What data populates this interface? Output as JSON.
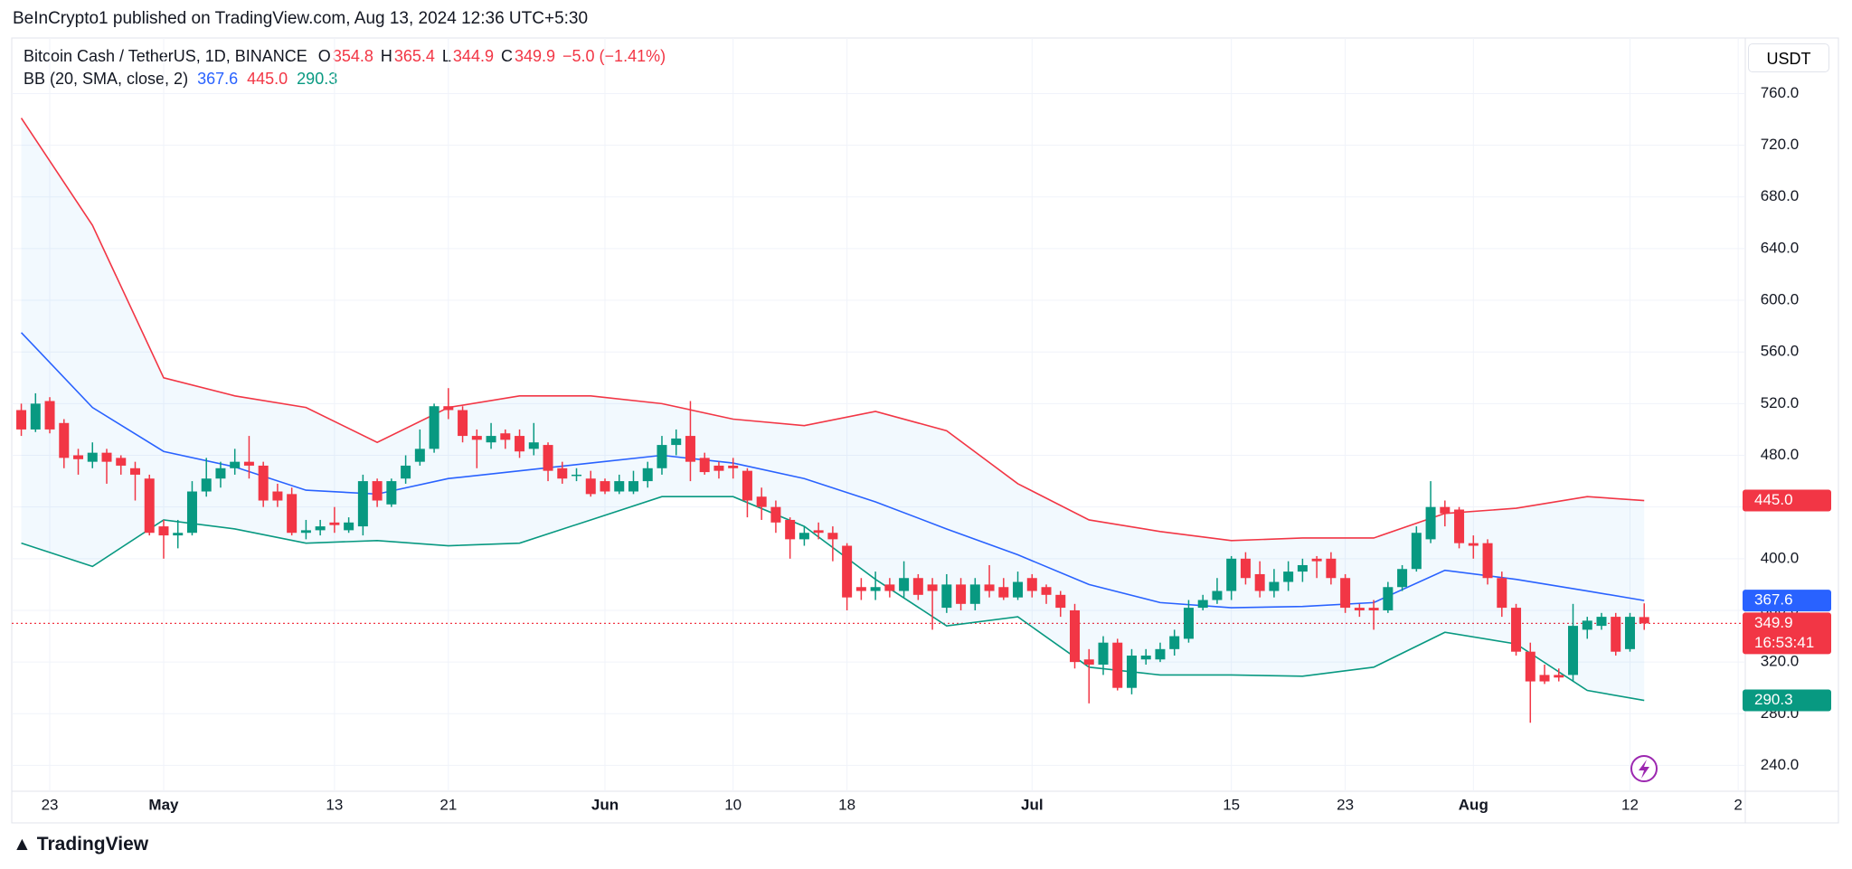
{
  "header": {
    "text": "BeInCrypto1 published on TradingView.com, Aug 13, 2024 12:36 UTC+5:30"
  },
  "footer": {
    "logo": "TradingView"
  },
  "chart_data": {
    "type": "candlestick",
    "legend": {
      "symbol": "Bitcoin Cash / TetherUS, 1D, BINANCE",
      "fields": [
        {
          "key": "O",
          "value": 354.8
        },
        {
          "key": "H",
          "value": 365.4
        },
        {
          "key": "L",
          "value": 344.9
        },
        {
          "key": "C",
          "value": 349.9
        }
      ],
      "change": "−5.0 (−1.41%)",
      "indicator": "BB (20, SMA, close, 2)",
      "indicator_values": [
        {
          "label": "367.6",
          "color": "#2962ff"
        },
        {
          "label": "445.0",
          "color": "#f23645"
        },
        {
          "label": "290.3",
          "color": "#089981"
        }
      ]
    },
    "currency": "USDT",
    "up_color": "#089981",
    "down_color": "#f23645",
    "ohlc": [
      [
        515,
        520,
        495,
        500
      ],
      [
        500,
        528,
        498,
        520
      ],
      [
        522,
        525,
        497,
        500
      ],
      [
        505,
        508,
        470,
        478
      ],
      [
        480,
        485,
        465,
        477
      ],
      [
        475,
        490,
        470,
        482
      ],
      [
        482,
        485,
        458,
        475
      ],
      [
        478,
        480,
        465,
        472
      ],
      [
        470,
        475,
        445,
        465
      ],
      [
        462,
        465,
        418,
        420
      ],
      [
        425,
        430,
        400,
        418
      ],
      [
        418,
        430,
        408,
        420
      ],
      [
        420,
        460,
        418,
        452
      ],
      [
        452,
        478,
        448,
        462
      ],
      [
        462,
        475,
        455,
        470
      ],
      [
        470,
        485,
        465,
        475
      ],
      [
        475,
        495,
        462,
        472
      ],
      [
        472,
        475,
        440,
        445
      ],
      [
        452,
        458,
        440,
        445
      ],
      [
        450,
        455,
        418,
        420
      ],
      [
        420,
        430,
        415,
        422
      ],
      [
        422,
        430,
        418,
        425
      ],
      [
        428,
        440,
        420,
        426
      ],
      [
        422,
        432,
        420,
        428
      ],
      [
        425,
        465,
        418,
        460
      ],
      [
        460,
        462,
        440,
        445
      ],
      [
        442,
        462,
        440,
        460
      ],
      [
        462,
        480,
        458,
        472
      ],
      [
        475,
        500,
        472,
        485
      ],
      [
        485,
        520,
        482,
        518
      ],
      [
        518,
        532,
        508,
        515
      ],
      [
        515,
        518,
        490,
        495
      ],
      [
        495,
        500,
        470,
        492
      ],
      [
        490,
        505,
        485,
        495
      ],
      [
        497,
        500,
        485,
        492
      ],
      [
        495,
        500,
        478,
        483
      ],
      [
        485,
        505,
        480,
        490
      ],
      [
        488,
        490,
        460,
        468
      ],
      [
        470,
        475,
        458,
        462
      ],
      [
        465,
        470,
        460,
        465
      ],
      [
        462,
        468,
        448,
        450
      ],
      [
        460,
        462,
        450,
        452
      ],
      [
        452,
        465,
        450,
        460
      ],
      [
        452,
        468,
        450,
        460
      ],
      [
        460,
        475,
        455,
        470
      ],
      [
        470,
        495,
        465,
        488
      ],
      [
        488,
        500,
        480,
        493
      ],
      [
        495,
        522,
        460,
        475
      ],
      [
        478,
        482,
        465,
        467
      ],
      [
        472,
        475,
        462,
        468
      ],
      [
        472,
        478,
        462,
        470
      ],
      [
        468,
        470,
        432,
        445
      ],
      [
        448,
        455,
        430,
        440
      ],
      [
        440,
        445,
        420,
        428
      ],
      [
        430,
        432,
        400,
        415
      ],
      [
        415,
        425,
        410,
        420
      ],
      [
        422,
        428,
        415,
        420
      ],
      [
        420,
        425,
        398,
        415
      ],
      [
        410,
        412,
        360,
        370
      ],
      [
        378,
        385,
        368,
        375
      ],
      [
        375,
        390,
        368,
        378
      ],
      [
        380,
        385,
        370,
        375
      ],
      [
        375,
        398,
        370,
        385
      ],
      [
        385,
        388,
        368,
        372
      ],
      [
        380,
        385,
        345,
        375
      ],
      [
        362,
        388,
        358,
        380
      ],
      [
        380,
        385,
        360,
        365
      ],
      [
        365,
        385,
        360,
        380
      ],
      [
        380,
        395,
        370,
        375
      ],
      [
        378,
        385,
        368,
        370
      ],
      [
        370,
        390,
        368,
        382
      ],
      [
        385,
        388,
        370,
        375
      ],
      [
        378,
        380,
        365,
        372
      ],
      [
        372,
        375,
        355,
        362
      ],
      [
        360,
        365,
        315,
        320
      ],
      [
        322,
        330,
        288,
        318
      ],
      [
        318,
        340,
        310,
        335
      ],
      [
        335,
        338,
        298,
        300
      ],
      [
        300,
        330,
        295,
        325
      ],
      [
        322,
        330,
        318,
        325
      ],
      [
        322,
        335,
        320,
        330
      ],
      [
        330,
        345,
        325,
        340
      ],
      [
        338,
        368,
        335,
        362
      ],
      [
        362,
        372,
        360,
        368
      ],
      [
        368,
        385,
        365,
        375
      ],
      [
        375,
        402,
        368,
        400
      ],
      [
        400,
        405,
        380,
        385
      ],
      [
        388,
        398,
        370,
        375
      ],
      [
        375,
        392,
        370,
        382
      ],
      [
        382,
        398,
        375,
        390
      ],
      [
        390,
        400,
        382,
        395
      ],
      [
        400,
        402,
        385,
        398
      ],
      [
        400,
        405,
        380,
        385
      ],
      [
        385,
        388,
        358,
        362
      ],
      [
        362,
        365,
        355,
        360
      ],
      [
        362,
        368,
        345,
        360
      ],
      [
        360,
        382,
        358,
        378
      ],
      [
        378,
        395,
        375,
        392
      ],
      [
        392,
        425,
        390,
        420
      ],
      [
        415,
        460,
        412,
        440
      ],
      [
        440,
        445,
        425,
        435
      ],
      [
        438,
        440,
        408,
        412
      ],
      [
        412,
        418,
        400,
        410
      ],
      [
        412,
        415,
        380,
        385
      ],
      [
        385,
        390,
        355,
        362
      ],
      [
        362,
        365,
        325,
        328
      ],
      [
        328,
        335,
        273,
        305
      ],
      [
        310,
        318,
        303,
        305
      ],
      [
        310,
        315,
        305,
        308
      ],
      [
        310,
        365,
        305,
        348
      ],
      [
        345,
        355,
        338,
        352
      ],
      [
        348,
        358,
        345,
        355
      ],
      [
        355,
        358,
        325,
        328
      ],
      [
        330,
        358,
        328,
        355
      ],
      [
        354.8,
        365.4,
        344.9,
        349.9
      ]
    ],
    "bands": {
      "x": [
        0,
        5,
        10,
        15,
        20,
        25,
        30,
        35,
        40,
        45,
        50,
        55,
        60,
        65,
        70,
        75,
        80,
        85,
        90,
        95,
        100,
        105,
        110,
        114
      ],
      "fill": "rgba(33,150,243,0.06)",
      "series": [
        {
          "name": "Upper",
          "color": "#f23645",
          "values": [
            741,
            658,
            540,
            526,
            517,
            490,
            517,
            526,
            526,
            520,
            508,
            503,
            514,
            499,
            458,
            430,
            421,
            414,
            416,
            416,
            435,
            439,
            448,
            445
          ]
        },
        {
          "name": "Basis",
          "color": "#2962ff",
          "values": [
            575,
            517,
            483,
            471,
            453,
            450,
            462,
            468,
            474,
            480,
            474,
            462,
            444,
            423,
            403,
            380,
            366,
            362,
            363,
            366,
            391,
            384,
            375,
            367.6
          ]
        },
        {
          "name": "Lower",
          "color": "#089981",
          "values": [
            412,
            394,
            430,
            423,
            412,
            414,
            410,
            412,
            430,
            448,
            448,
            425,
            384,
            348,
            355,
            316,
            310,
            310,
            309,
            316,
            343,
            334,
            298,
            290.3
          ]
        }
      ]
    },
    "xlim": [
      -0.67,
      121.1
    ],
    "xticks": [
      {
        "value": 2,
        "label": "23"
      },
      {
        "value": 10,
        "label": "May"
      },
      {
        "value": 22,
        "label": "13"
      },
      {
        "value": 30,
        "label": "21"
      },
      {
        "value": 41,
        "label": "Jun"
      },
      {
        "value": 50,
        "label": "10"
      },
      {
        "value": 58,
        "label": "18"
      },
      {
        "value": 71,
        "label": "Jul"
      },
      {
        "value": 85,
        "label": "15"
      },
      {
        "value": 93,
        "label": "23"
      },
      {
        "value": 102,
        "label": "Aug"
      },
      {
        "value": 113,
        "label": "12"
      },
      {
        "value": 120.6,
        "label": "2"
      }
    ],
    "ylim": [
      220,
      803
    ],
    "yticks": [
      {
        "value": 240,
        "label": "240.0"
      },
      {
        "value": 280,
        "label": "280.0"
      },
      {
        "value": 320,
        "label": "320.0"
      },
      {
        "value": 360,
        "label": "360.0"
      },
      {
        "value": 400,
        "label": "400.0"
      },
      {
        "value": 440,
        "label": "440.0"
      },
      {
        "value": 480,
        "label": "480.0"
      },
      {
        "value": 520,
        "label": "520.0"
      },
      {
        "value": 560,
        "label": "560.0"
      },
      {
        "value": 600,
        "label": "600.0"
      },
      {
        "value": 640,
        "label": "640.0"
      },
      {
        "value": 680,
        "label": "680.0"
      },
      {
        "value": 720,
        "label": "720.0"
      },
      {
        "value": 760,
        "label": "760.0"
      }
    ],
    "grid": true,
    "last_price": 349.9,
    "price_badges": [
      {
        "value": 445.0,
        "label": "445.0",
        "color": "#f23645"
      },
      {
        "value": 367.6,
        "label": "367.6",
        "color": "#2962ff"
      },
      {
        "value": 349.9,
        "label": "349.9",
        "sub": "16:53:41",
        "color": "#f23645"
      },
      {
        "value": 290.3,
        "label": "290.3",
        "color": "#089981"
      }
    ]
  }
}
